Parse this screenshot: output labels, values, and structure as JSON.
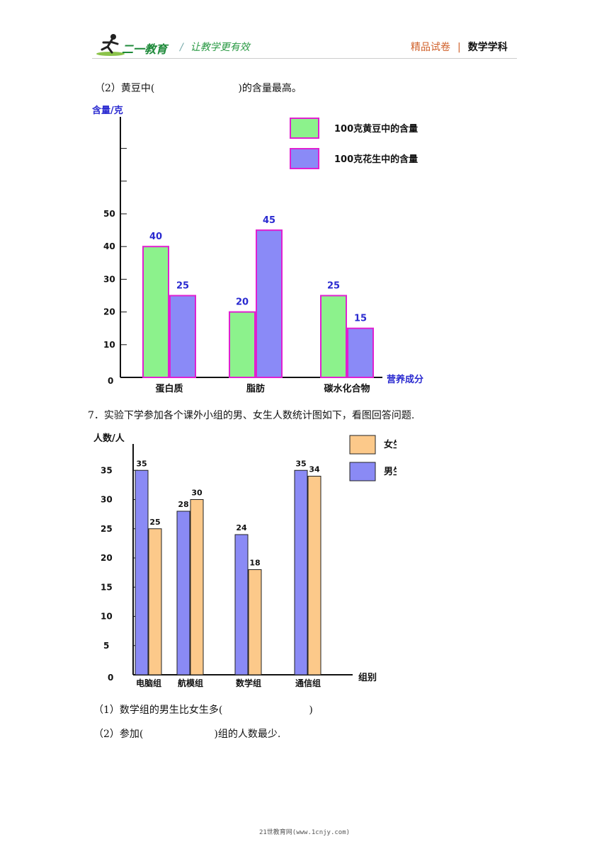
{
  "header": {
    "logo_text": "二一教育",
    "slogan": "让教学更有效",
    "slogan_sep": "/",
    "right_a": "精品试卷",
    "right_sep": "|",
    "right_b": "数学学科"
  },
  "question_6_2": {
    "before": "（2）黄豆中(",
    "after": ")的含量最高。"
  },
  "question_7": {
    "stem": "7．实验下学参加各个课外小组的男、女生人数统计图如下，看图回答问题.",
    "q1_before": "（1）数学组的男生比女生多(",
    "q1_after": ")",
    "q2_before": "（2）参加(",
    "q2_after": ")组的人数最少."
  },
  "footer": "21世教育网(www.1cnjy.com)",
  "colors": {
    "soy": "#8cf28c",
    "peanut": "#8a8af7",
    "border_pink": "#e020d0",
    "female": "#fcc98a",
    "male": "#8a8af5",
    "label_blue": "#2a2ad0"
  },
  "chart_data": [
    {
      "type": "bar",
      "ylabel": "含量/克",
      "xlabel": "营养成分",
      "categories": [
        "蛋白质",
        "脂肪",
        "碳水化合物"
      ],
      "series": [
        {
          "name": "100克黄豆中的含量",
          "values": [
            40,
            20,
            25
          ]
        },
        {
          "name": "100克花生中的含量",
          "values": [
            25,
            45,
            15
          ]
        }
      ],
      "yticks": [
        "0",
        "10",
        "20",
        "30",
        "40",
        "50"
      ],
      "ylim": [
        0,
        80
      ],
      "legend": "top-right"
    },
    {
      "type": "bar",
      "ylabel": "人数/人",
      "xlabel": "组别",
      "categories": [
        "电脑组",
        "航模组",
        "数学组",
        "通信组"
      ],
      "series": [
        {
          "name": "男生",
          "values": [
            35,
            28,
            24,
            35
          ]
        },
        {
          "name": "女生",
          "values": [
            25,
            30,
            18,
            34
          ]
        }
      ],
      "yticks": [
        "0",
        "5",
        "10",
        "15",
        "20",
        "25",
        "30",
        "35"
      ],
      "ylim": [
        0,
        40
      ],
      "legend": "top-right"
    }
  ]
}
